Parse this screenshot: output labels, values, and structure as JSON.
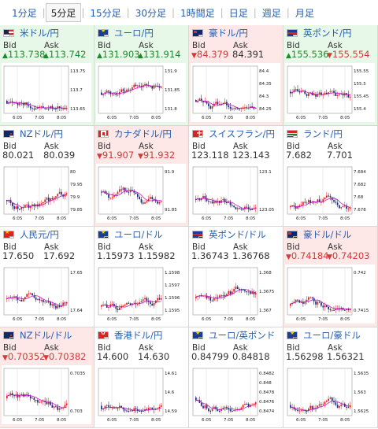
{
  "tabs": [
    "1分足",
    "5分足",
    "15分足",
    "30分足",
    "1時間足",
    "日足",
    "週足",
    "月足"
  ],
  "active_tab_index": 1,
  "labels": {
    "bid": "Bid",
    "ask": "Ask"
  },
  "colors": {
    "up_bg": "#e8f8e8",
    "down_bg": "#fde7e7",
    "up_text": "#1c8a2b",
    "down_text": "#d23a3a",
    "link": "#245eb3",
    "ma_line": "#c000c0"
  },
  "pairs": [
    {
      "name": "米ドル/円",
      "flags": [
        "us",
        "jp"
      ],
      "bg": "up",
      "bid": "113.738",
      "ask": "113.742",
      "bid_trend": "up",
      "ask_trend": "up",
      "ticks": [
        "113.75",
        "113.7",
        "113.65"
      ],
      "times": [
        "6:05",
        "7:05",
        "8:05"
      ]
    },
    {
      "name": "ユーロ/円",
      "flags": [
        "eu",
        "jp"
      ],
      "bg": "up",
      "bid": "131.903",
      "ask": "131.914",
      "bid_trend": "up",
      "ask_trend": "up",
      "ticks": [
        "131.9",
        "131.85",
        "131.8"
      ],
      "times": [
        "6:05",
        "7:05",
        "8:05"
      ]
    },
    {
      "name": "豪ドル/円",
      "flags": [
        "au",
        "jp"
      ],
      "bg": "down",
      "bid": "84.379",
      "ask": "84.391",
      "bid_trend": "down",
      "ask_trend": "flat",
      "ticks": [
        "84.4",
        "84.35",
        "84.3",
        "84.25"
      ],
      "times": [
        "6:05",
        "7:05",
        "8:05"
      ]
    },
    {
      "name": "英ポンド/円",
      "flags": [
        "gb",
        "jp"
      ],
      "bg": "up",
      "bid": "155.536",
      "ask": "155.554",
      "bid_trend": "up",
      "ask_trend": "down",
      "ticks": [
        "155.55",
        "155.5",
        "155.45",
        "155.4"
      ],
      "times": [
        "6:05",
        "7:05",
        "8:05"
      ]
    },
    {
      "name": "NZドル/円",
      "flags": [
        "nz",
        "jp"
      ],
      "bg": "flat",
      "bid": "80.021",
      "ask": "80.039",
      "bid_trend": "flat",
      "ask_trend": "flat",
      "ticks": [
        "80",
        "79.95",
        "79.9",
        "79.85"
      ],
      "times": [
        "6:05",
        "7:05",
        "8:05"
      ]
    },
    {
      "name": "カナダドル/円",
      "flags": [
        "ca",
        "jp"
      ],
      "bg": "down",
      "bid": "91.907",
      "ask": "91.932",
      "bid_trend": "down",
      "ask_trend": "down",
      "ticks": [
        "91.9",
        "91.85"
      ],
      "times": [
        "6:05",
        "7:05",
        "8:05"
      ]
    },
    {
      "name": "スイスフラン/円",
      "flags": [
        "ch",
        "jp"
      ],
      "bg": "flat",
      "bid": "123.118",
      "ask": "123.143",
      "bid_trend": "flat",
      "ask_trend": "flat",
      "ticks": [
        "123.1",
        "123.05"
      ],
      "times": [
        "6:05",
        "7:05",
        "8:05"
      ]
    },
    {
      "name": "ランド/円",
      "flags": [
        "za",
        "jp"
      ],
      "bg": "flat",
      "bid": "7.682",
      "ask": "7.701",
      "bid_trend": "flat",
      "ask_trend": "flat",
      "ticks": [
        "7.684",
        "7.682",
        "7.68",
        "7.678"
      ],
      "times": [
        "6:05",
        "7:05",
        "8:05"
      ]
    },
    {
      "name": "人民元/円",
      "flags": [
        "cn",
        "jp"
      ],
      "bg": "flat",
      "bid": "17.650",
      "ask": "17.692",
      "bid_trend": "flat",
      "ask_trend": "flat",
      "ticks": [
        "17.65",
        "17.64"
      ],
      "times": [
        "6:05",
        "7:05",
        "8:05"
      ]
    },
    {
      "name": "ユーロ/ドル",
      "flags": [
        "eu",
        "us"
      ],
      "bg": "flat",
      "bid": "1.15973",
      "ask": "1.15982",
      "bid_trend": "flat",
      "ask_trend": "flat",
      "ticks": [
        "1.1598",
        "1.1597",
        "1.1596",
        "1.1595"
      ],
      "times": [
        "6:05",
        "7:05",
        "8:05"
      ]
    },
    {
      "name": "英ポンド/ドル",
      "flags": [
        "gb",
        "us"
      ],
      "bg": "flat",
      "bid": "1.36743",
      "ask": "1.36768",
      "bid_trend": "flat",
      "ask_trend": "flat",
      "ticks": [
        "1.368",
        "1.3675",
        "1.367"
      ],
      "times": [
        "6:05",
        "7:05",
        "8:05"
      ]
    },
    {
      "name": "豪ドル/ドル",
      "flags": [
        "au",
        "us"
      ],
      "bg": "down",
      "bid": "0.74184",
      "ask": "0.74203",
      "bid_trend": "down",
      "ask_trend": "down",
      "ticks": [
        "0.742",
        "0.7415"
      ],
      "times": [
        "6:05",
        "7:05",
        "8:05"
      ]
    },
    {
      "name": "NZドル/ドル",
      "flags": [
        "nz",
        "us"
      ],
      "bg": "down",
      "bid": "0.70352",
      "ask": "0.70382",
      "bid_trend": "down",
      "ask_trend": "down",
      "ticks": [
        "0.7035",
        "0.703"
      ],
      "times": [
        "6:05",
        "7:05",
        "8:05"
      ]
    },
    {
      "name": "香港ドル/円",
      "flags": [
        "hk",
        "jp"
      ],
      "bg": "flat",
      "bid": "14.600",
      "ask": "14.630",
      "bid_trend": "flat",
      "ask_trend": "flat",
      "ticks": [
        "14.61",
        "14.6",
        "14.59"
      ],
      "times": [
        "6:05",
        "7:05",
        "8:05"
      ]
    },
    {
      "name": "ユーロ/英ポンド",
      "flags": [
        "eu",
        "gb"
      ],
      "bg": "flat",
      "bid": "0.84799",
      "ask": "0.84818",
      "bid_trend": "flat",
      "ask_trend": "flat",
      "ticks": [
        "0.8482",
        "0.848",
        "0.8478",
        "0.8476",
        "0.8474"
      ],
      "times": [
        "6:05",
        "7:05",
        "8:05"
      ]
    },
    {
      "name": "ユーロ/豪ドル",
      "flags": [
        "eu",
        "au"
      ],
      "bg": "flat",
      "bid": "1.56298",
      "ask": "1.56321",
      "bid_trend": "flat",
      "ask_trend": "flat",
      "ticks": [
        "1.5635",
        "1.563",
        "1.5625"
      ],
      "times": [
        "6:05",
        "7:05",
        "8:05"
      ]
    }
  ]
}
